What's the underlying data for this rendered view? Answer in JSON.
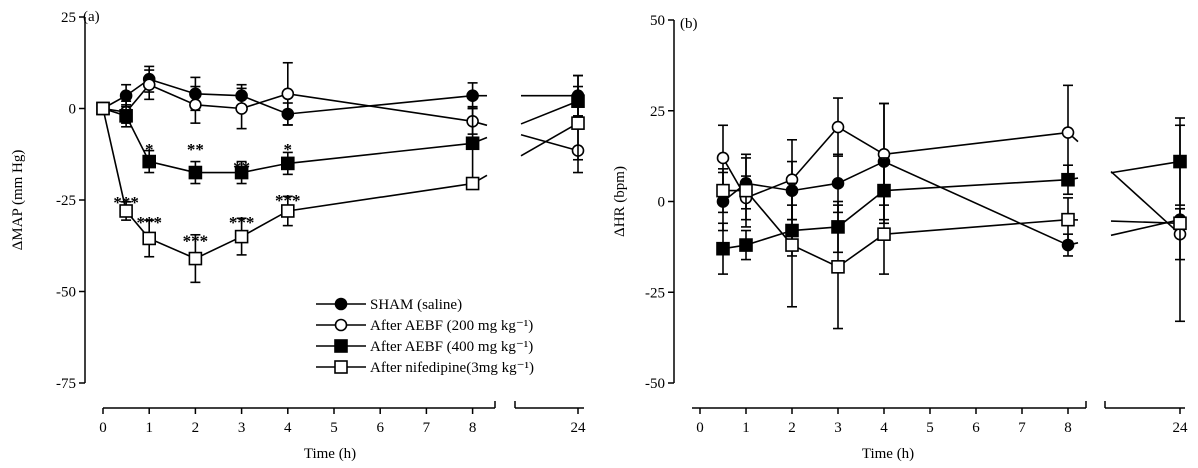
{
  "chart_data": [
    {
      "type": "line",
      "panel_label": "(a)",
      "ylabel": "ΔMAP (mm Hg)",
      "xlabel": "Time (h)",
      "ylim": [
        -75,
        25
      ],
      "yticks": [
        25,
        0,
        -25,
        -50,
        -75
      ],
      "ytick_labels": [
        "25",
        "0",
        "-25",
        "-50",
        "-75"
      ],
      "xticks": [
        0,
        1,
        2,
        3,
        4,
        5,
        6,
        7,
        8,
        24
      ],
      "xtick_labels": [
        "0",
        "1",
        "2",
        "3",
        "4",
        "5",
        "6",
        "7",
        "8",
        "24"
      ],
      "axis_break": "between 8 and 24 h",
      "grid": false,
      "legend_position": "bottom-right",
      "legend": [
        {
          "label": "SHAM (saline)",
          "marker": "circle",
          "fill": "black"
        },
        {
          "label": "After AEBF (200 mg  kg⁻¹)",
          "marker": "circle",
          "fill": "white"
        },
        {
          "label": "After AEBF (400 mg  kg⁻¹)",
          "marker": "square",
          "fill": "black"
        },
        {
          "label": "After nifedipine(3mg  kg⁻¹)",
          "marker": "square",
          "fill": "white"
        }
      ],
      "series": [
        {
          "marker": "circle",
          "fill": "black",
          "points": [
            [
              0,
              0,
              0
            ],
            [
              0.5,
              3.5,
              3
            ],
            [
              1,
              8,
              3.5
            ],
            [
              2,
              4,
              4.5
            ],
            [
              3,
              3.5,
              3
            ],
            [
              4,
              -1.5,
              3
            ],
            [
              8,
              3.5,
              3.5
            ],
            [
              24,
              3.5,
              5.5
            ]
          ]
        },
        {
          "marker": "circle",
          "fill": "white",
          "points": [
            [
              0,
              0,
              0
            ],
            [
              0.5,
              -1,
              3
            ],
            [
              1,
              6.5,
              4
            ],
            [
              2,
              1,
              5
            ],
            [
              3,
              0,
              5.5
            ],
            [
              4,
              4,
              8.5
            ],
            [
              8,
              -3.5,
              3.5
            ],
            [
              24,
              -11.5,
              6
            ]
          ]
        },
        {
          "marker": "square",
          "fill": "black",
          "points": [
            [
              0,
              0,
              0
            ],
            [
              0.5,
              -2,
              3
            ],
            [
              1,
              -14.5,
              3
            ],
            [
              2,
              -17.5,
              3
            ],
            [
              3,
              -17.5,
              3
            ],
            [
              4,
              -15,
              3
            ],
            [
              8,
              -9.5,
              10
            ],
            [
              24,
              2,
              7
            ]
          ]
        },
        {
          "marker": "square",
          "fill": "white",
          "points": [
            [
              0,
              0,
              0
            ],
            [
              0.5,
              -28,
              2.5
            ],
            [
              1,
              -35.5,
              5
            ],
            [
              2,
              -41,
              6.5
            ],
            [
              3,
              -35,
              5
            ],
            [
              4,
              -28,
              4
            ],
            [
              8,
              -20.5,
              0
            ],
            [
              24,
              -4,
              10
            ]
          ]
        }
      ],
      "annotations": [
        {
          "text": "*",
          "x": 1,
          "y": -11
        },
        {
          "text": "**",
          "x": 2,
          "y": -11
        },
        {
          "text": "**",
          "x": 3,
          "y": -16
        },
        {
          "text": "*",
          "x": 4,
          "y": -11
        },
        {
          "text": "***",
          "x": 0.5,
          "y": -25.5
        },
        {
          "text": "***",
          "x": 1,
          "y": -31
        },
        {
          "text": "***",
          "x": 2,
          "y": -36
        },
        {
          "text": "***",
          "x": 3,
          "y": -31
        },
        {
          "text": "***",
          "x": 4,
          "y": -25
        }
      ]
    },
    {
      "type": "line",
      "panel_label": "(b)",
      "ylabel": "ΔHR (bpm)",
      "xlabel": "Time (h)",
      "ylim": [
        -50,
        50
      ],
      "yticks": [
        50,
        25,
        0,
        -25,
        -50
      ],
      "ytick_labels": [
        "50",
        "25",
        "0",
        "-25",
        "-50"
      ],
      "xticks": [
        0,
        1,
        2,
        3,
        4,
        5,
        6,
        7,
        8,
        24
      ],
      "xtick_labels": [
        "0",
        "1",
        "2",
        "3",
        "4",
        "5",
        "6",
        "7",
        "8",
        "24"
      ],
      "axis_break": "between 8 and 24 h",
      "grid": false,
      "series": [
        {
          "marker": "circle",
          "fill": "black",
          "points": [
            [
              0.5,
              0,
              8
            ],
            [
              1,
              5,
              7
            ],
            [
              2,
              3,
              8
            ],
            [
              3,
              5,
              8
            ],
            [
              4,
              11,
              16
            ],
            [
              8,
              -12,
              3
            ],
            [
              24,
              -5,
              3
            ]
          ]
        },
        {
          "marker": "circle",
          "fill": "white",
          "points": [
            [
              0.5,
              12,
              9
            ],
            [
              1,
              1,
              6
            ],
            [
              2,
              6,
              11
            ],
            [
              3,
              20.5,
              8
            ],
            [
              4,
              13,
              14
            ],
            [
              8,
              19,
              13
            ],
            [
              24,
              -9,
              7
            ]
          ]
        },
        {
          "marker": "square",
          "fill": "black",
          "points": [
            [
              0.5,
              -13,
              7
            ],
            [
              1,
              -12,
              4
            ],
            [
              2,
              -8,
              7
            ],
            [
              3,
              -7,
              7
            ],
            [
              4,
              3,
              9
            ],
            [
              8,
              6,
              4
            ],
            [
              24,
              11,
              12
            ]
          ]
        },
        {
          "marker": "square",
          "fill": "white",
          "points": [
            [
              0.5,
              3,
              6
            ],
            [
              1,
              3,
              10
            ],
            [
              2,
              -12,
              17
            ],
            [
              3,
              -18,
              17
            ],
            [
              4,
              -9,
              11
            ],
            [
              8,
              -5,
              6
            ],
            [
              24,
              -6,
              27
            ]
          ]
        }
      ]
    }
  ]
}
